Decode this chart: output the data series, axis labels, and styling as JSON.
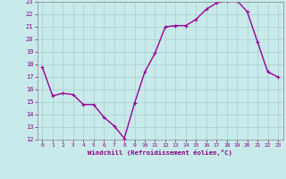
{
  "x": [
    0,
    1,
    2,
    3,
    4,
    5,
    6,
    7,
    8,
    9,
    10,
    11,
    12,
    13,
    14,
    15,
    16,
    17,
    18,
    19,
    20,
    21,
    22,
    23
  ],
  "y": [
    17.8,
    15.5,
    15.7,
    15.6,
    14.8,
    14.8,
    13.8,
    13.1,
    12.1,
    14.9,
    17.4,
    18.9,
    21.0,
    21.1,
    21.1,
    21.6,
    22.4,
    22.9,
    23.1,
    23.1,
    22.2,
    19.8,
    17.4,
    17.0
  ],
  "line_color": "#990099",
  "marker": "+",
  "marker_size": 3,
  "marker_linewidth": 0.8,
  "bg_color": "#c8eaea",
  "grid_color": "#a8cece",
  "xlabel": "Windchill (Refroidissement éolien,°C)",
  "xlabel_color": "#880088",
  "tick_color": "#880088",
  "ylim": [
    12,
    23
  ],
  "yticks": [
    12,
    13,
    14,
    15,
    16,
    17,
    18,
    19,
    20,
    21,
    22,
    23
  ],
  "xlim": [
    -0.5,
    23.5
  ],
  "xticks": [
    0,
    1,
    2,
    3,
    4,
    5,
    6,
    7,
    8,
    9,
    10,
    11,
    12,
    13,
    14,
    15,
    16,
    17,
    18,
    19,
    20,
    21,
    22,
    23
  ],
  "line_width": 1.0,
  "spine_color": "#888888"
}
